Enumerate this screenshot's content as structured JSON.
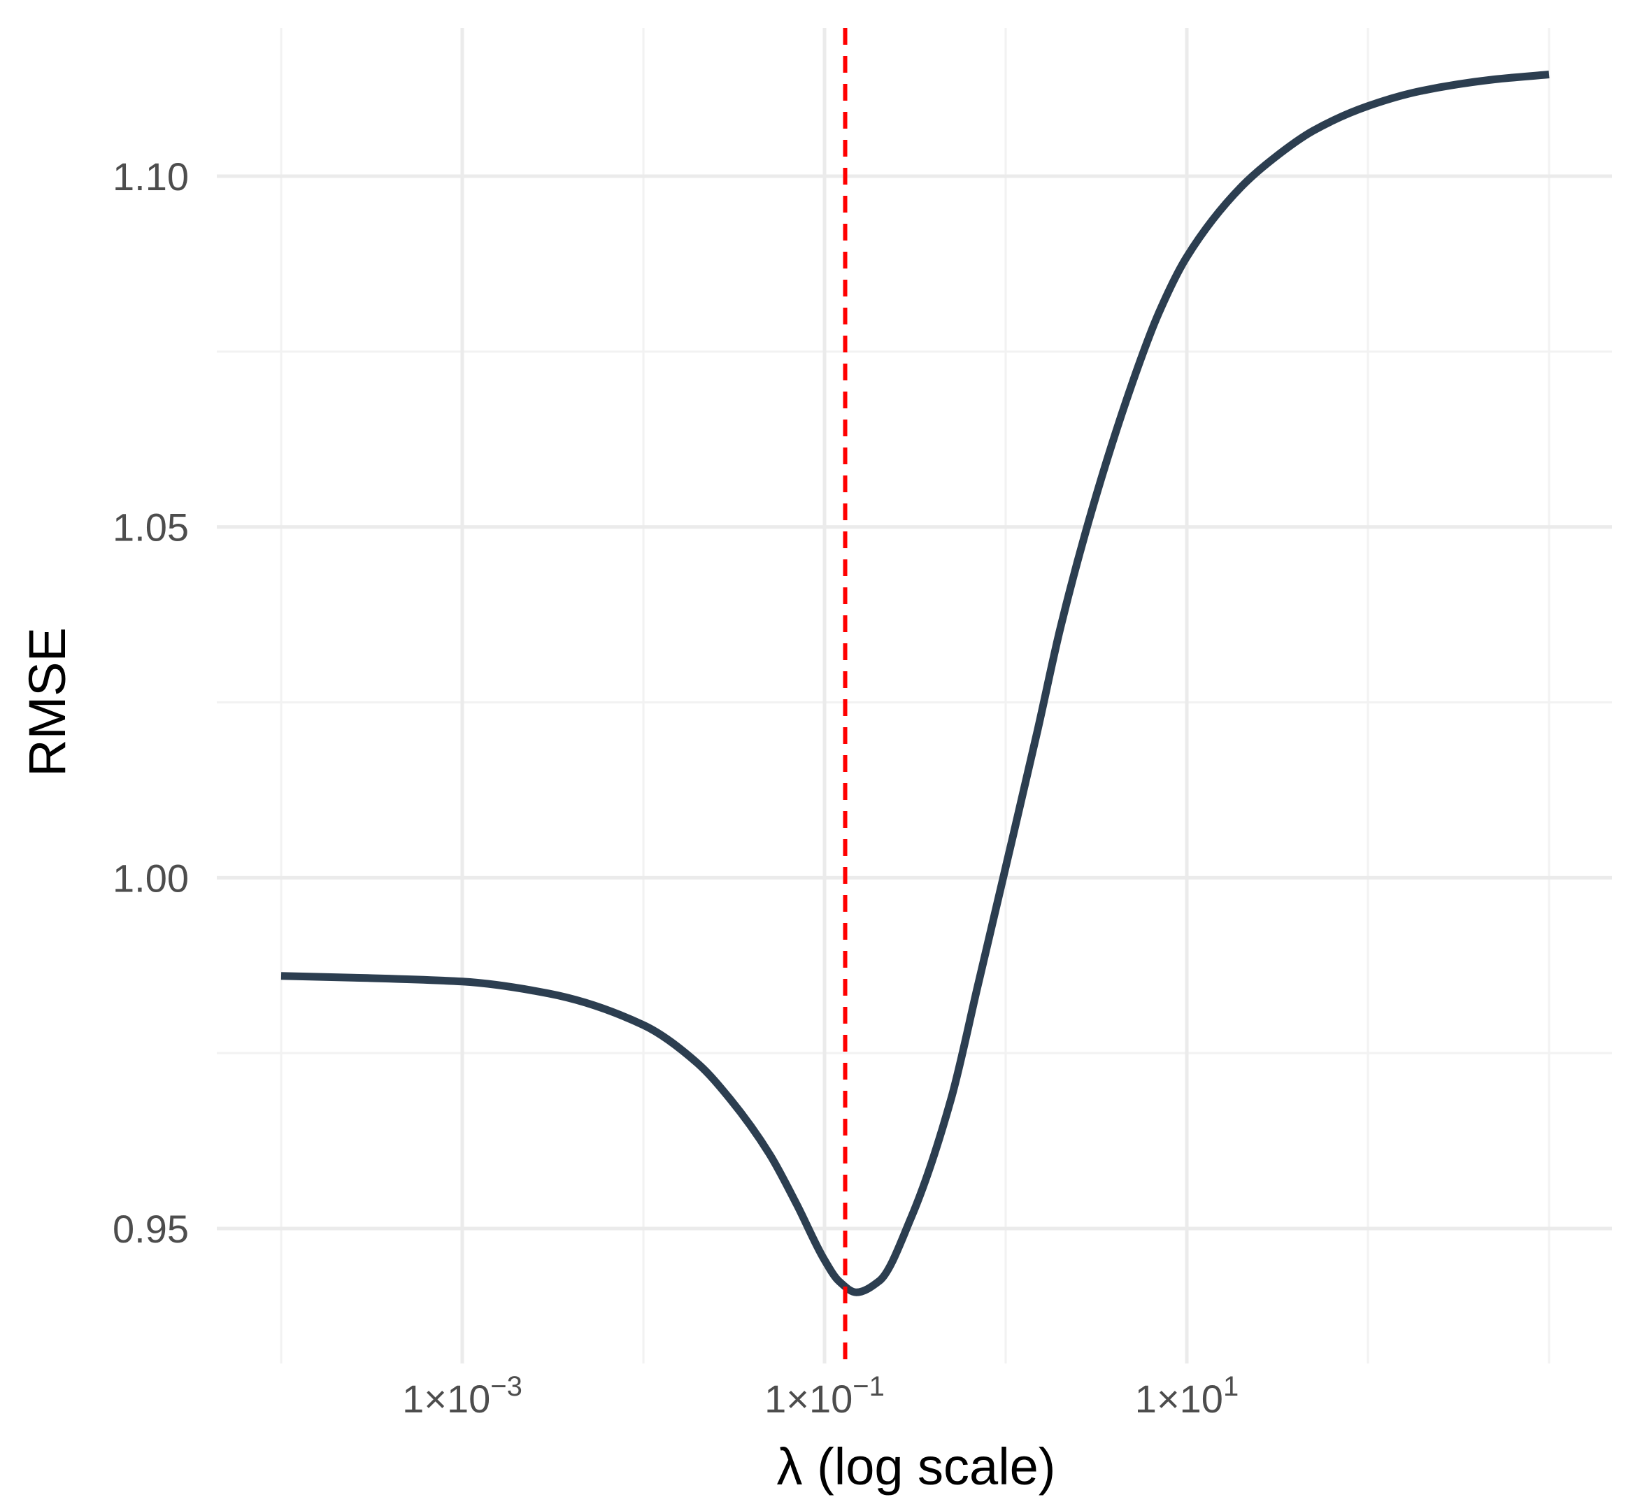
{
  "chart_data": {
    "type": "line",
    "x_scale": "log10",
    "xlabel": "λ  (log scale)",
    "ylabel": "RMSE",
    "xlim": [
      0.0001,
      1000
    ],
    "ylim": [
      0.9355,
      1.1205
    ],
    "x_ticks": [
      {
        "value": 0.001,
        "mantissa": "1×10",
        "exponent": "−3"
      },
      {
        "value": 0.1,
        "mantissa": "1×10",
        "exponent": "−1"
      },
      {
        "value": 10,
        "mantissa": "1×10",
        "exponent": "1"
      }
    ],
    "x_minor_ticks": [
      0.0001,
      0.01,
      1,
      100,
      1000
    ],
    "y_ticks": [
      {
        "value": 0.95,
        "label": "0.95"
      },
      {
        "value": 1.0,
        "label": "1.00"
      },
      {
        "value": 1.05,
        "label": "1.05"
      },
      {
        "value": 1.1,
        "label": "1.10"
      }
    ],
    "y_minor_ticks": [
      0.975,
      1.025,
      1.075
    ],
    "grid": true,
    "series": [
      {
        "color": "#2c3e50",
        "x": [
          0.0001,
          0.0003,
          0.001,
          0.003,
          0.01,
          0.02,
          0.03,
          0.05,
          0.07,
          0.1,
          0.12,
          0.15,
          0.2,
          0.3,
          0.5,
          0.7,
          1,
          1.5,
          2,
          3,
          5,
          7,
          10,
          20,
          30,
          50,
          100,
          200,
          500,
          1000
        ],
        "y": [
          0.986,
          0.9857,
          0.9852,
          0.9835,
          0.979,
          0.9735,
          0.9685,
          0.9605,
          0.9535,
          0.9455,
          0.9425,
          0.9409,
          0.9425,
          0.9515,
          0.9685,
          0.9845,
          1.0015,
          1.021,
          1.0355,
          1.0525,
          1.0705,
          1.0805,
          1.0885,
          1.0985,
          1.1025,
          1.1065,
          1.11,
          1.1122,
          1.1138,
          1.1145
        ]
      }
    ],
    "reference_lines": [
      {
        "axis": "x",
        "value": 0.13,
        "color": "#ff0000",
        "style": "dashed"
      }
    ]
  }
}
